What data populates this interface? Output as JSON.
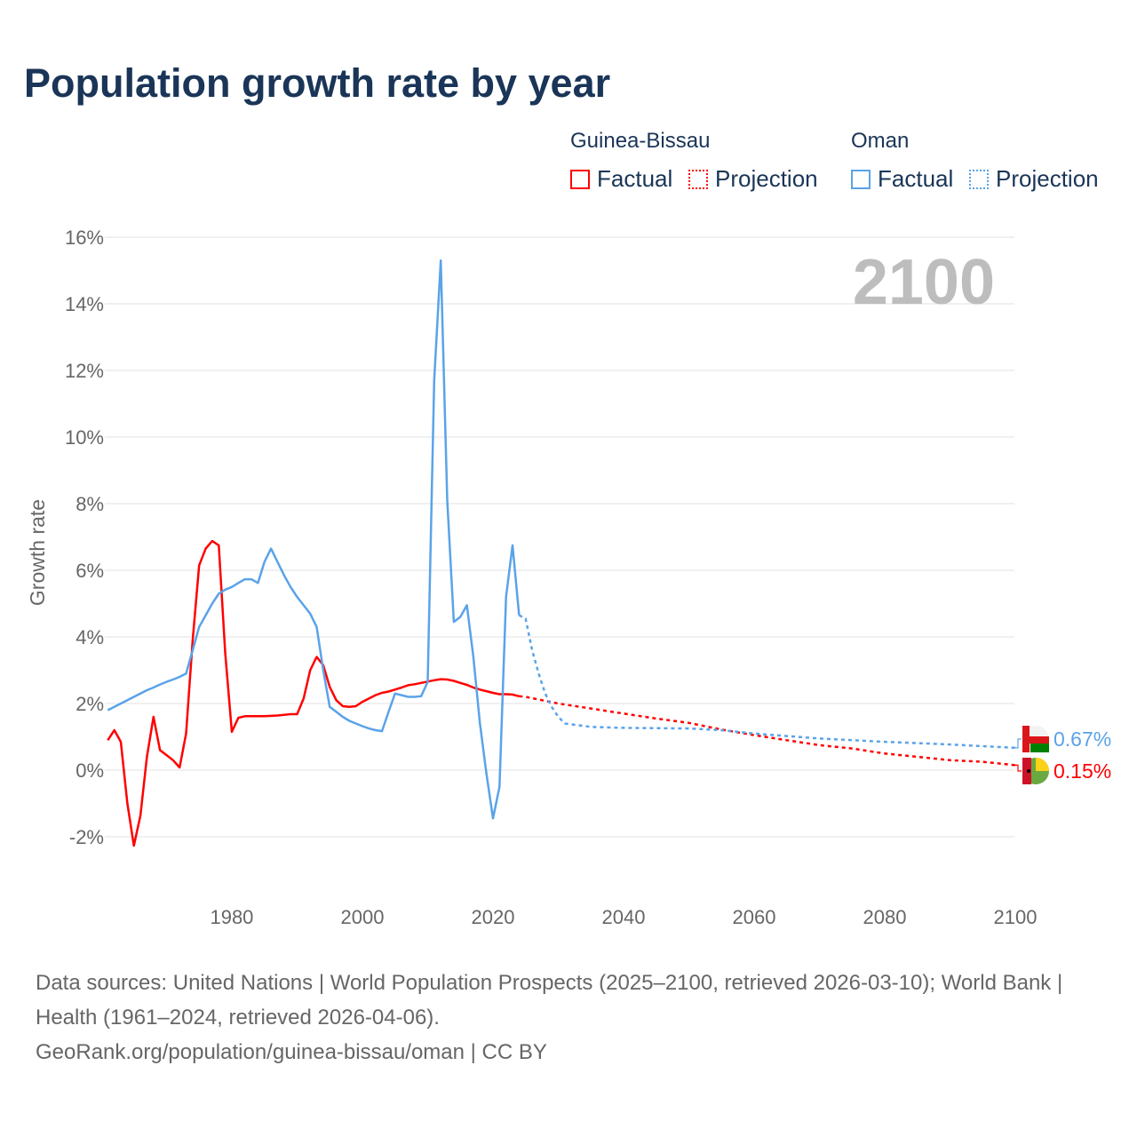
{
  "title": "Population growth rate by year",
  "legend": {
    "groups": [
      {
        "name": "Guinea-Bissau",
        "color": "#ff0000",
        "factual": "Factual",
        "projection": "Projection"
      },
      {
        "name": "Oman",
        "color": "#5aa3e8",
        "factual": "Factual",
        "projection": "Projection"
      }
    ]
  },
  "footer": {
    "line1": "Data sources: United Nations | World Population Prospects (2025–2100, retrieved 2026-03-10); World Bank | Health (1961–2024, retrieved 2026-04-06).",
    "line2": "GeoRank.org/population/guinea-bissau/oman | CC BY"
  },
  "chart_data": {
    "type": "line",
    "title": "Population growth rate by year",
    "xlabel": "",
    "ylabel": "Growth rate",
    "year_label": "2100",
    "xlim": [
      1961,
      2100
    ],
    "ylim": [
      -4,
      16
    ],
    "xticks": [
      1980,
      2000,
      2020,
      2040,
      2060,
      2080,
      2100
    ],
    "yticks": [
      -2,
      0,
      2,
      4,
      6,
      8,
      10,
      12,
      14,
      16
    ],
    "ytick_labels": [
      "-2%",
      "0%",
      "2%",
      "4%",
      "6%",
      "8%",
      "10%",
      "12%",
      "14%",
      "16%"
    ],
    "grid": true,
    "series": [
      {
        "name": "Guinea-Bissau",
        "color": "#ff0000",
        "end_label": "0.15%",
        "factual": {
          "x": [
            1961,
            1962,
            1963,
            1964,
            1965,
            1966,
            1967,
            1968,
            1969,
            1970,
            1971,
            1972,
            1973,
            1974,
            1975,
            1976,
            1977,
            1978,
            1979,
            1980,
            1981,
            1982,
            1983,
            1984,
            1985,
            1986,
            1987,
            1988,
            1989,
            1990,
            1991,
            1992,
            1993,
            1994,
            1995,
            1996,
            1997,
            1998,
            1999,
            2000,
            2001,
            2002,
            2003,
            2004,
            2005,
            2006,
            2007,
            2008,
            2009,
            2010,
            2011,
            2012,
            2013,
            2014,
            2015,
            2016,
            2017,
            2018,
            2019,
            2020,
            2021,
            2022,
            2023,
            2024
          ],
          "y": [
            0.9,
            1.2,
            0.85,
            -1.0,
            -2.27,
            -1.36,
            0.4,
            1.6,
            0.6,
            0.45,
            0.3,
            0.08,
            1.1,
            3.9,
            6.15,
            6.65,
            6.88,
            6.75,
            3.5,
            1.15,
            1.57,
            1.62,
            1.62,
            1.62,
            1.62,
            1.63,
            1.64,
            1.66,
            1.68,
            1.68,
            2.15,
            3.0,
            3.4,
            3.15,
            2.5,
            2.1,
            1.92,
            1.9,
            1.92,
            2.05,
            2.15,
            2.25,
            2.32,
            2.36,
            2.42,
            2.48,
            2.55,
            2.58,
            2.62,
            2.66,
            2.7,
            2.73,
            2.72,
            2.68,
            2.62,
            2.56,
            2.48,
            2.42,
            2.37,
            2.32,
            2.28,
            2.28,
            2.27,
            2.22
          ]
        },
        "projection": {
          "x": [
            2024,
            2025,
            2030,
            2035,
            2040,
            2045,
            2050,
            2055,
            2060,
            2065,
            2070,
            2075,
            2080,
            2085,
            2090,
            2095,
            2100
          ],
          "y": [
            2.22,
            2.2,
            2.0,
            1.85,
            1.7,
            1.55,
            1.42,
            1.22,
            1.05,
            0.9,
            0.75,
            0.65,
            0.5,
            0.4,
            0.3,
            0.25,
            0.15
          ]
        }
      },
      {
        "name": "Oman",
        "color": "#5aa3e8",
        "end_label": "0.67%",
        "factual": {
          "x": [
            1961,
            1962,
            1963,
            1964,
            1965,
            1966,
            1967,
            1968,
            1969,
            1970,
            1971,
            1972,
            1973,
            1974,
            1975,
            1976,
            1977,
            1978,
            1979,
            1980,
            1981,
            1982,
            1983,
            1984,
            1985,
            1986,
            1987,
            1988,
            1989,
            1990,
            1991,
            1992,
            1993,
            1994,
            1995,
            1996,
            1997,
            1998,
            1999,
            2000,
            2001,
            2002,
            2003,
            2004,
            2005,
            2006,
            2007,
            2008,
            2009,
            2010,
            2011,
            2012,
            2013,
            2014,
            2015,
            2016,
            2017,
            2018,
            2019,
            2020,
            2021,
            2022,
            2023,
            2024
          ],
          "y": [
            1.8,
            1.9,
            2.0,
            2.1,
            2.2,
            2.3,
            2.4,
            2.48,
            2.57,
            2.65,
            2.72,
            2.8,
            2.9,
            3.6,
            4.3,
            4.65,
            5.0,
            5.3,
            5.42,
            5.5,
            5.62,
            5.73,
            5.73,
            5.62,
            6.25,
            6.65,
            6.25,
            5.85,
            5.5,
            5.2,
            4.95,
            4.7,
            4.3,
            3.0,
            1.9,
            1.75,
            1.6,
            1.48,
            1.4,
            1.32,
            1.25,
            1.2,
            1.17,
            1.75,
            2.3,
            2.25,
            2.2,
            2.2,
            2.22,
            2.65,
            11.7,
            15.3,
            8.1,
            4.45,
            4.6,
            4.95,
            3.4,
            1.4,
            -0.1,
            -1.45,
            -0.5,
            5.2,
            6.75,
            4.65
          ]
        },
        "projection": {
          "x": [
            2024,
            2025,
            2026,
            2027,
            2028,
            2029,
            2030,
            2031,
            2035,
            2040,
            2050,
            2055,
            2060,
            2070,
            2080,
            2090,
            2100
          ],
          "y": [
            4.65,
            4.55,
            3.6,
            2.9,
            2.3,
            1.9,
            1.6,
            1.4,
            1.3,
            1.27,
            1.25,
            1.2,
            1.1,
            0.95,
            0.85,
            0.77,
            0.67
          ]
        }
      }
    ]
  }
}
